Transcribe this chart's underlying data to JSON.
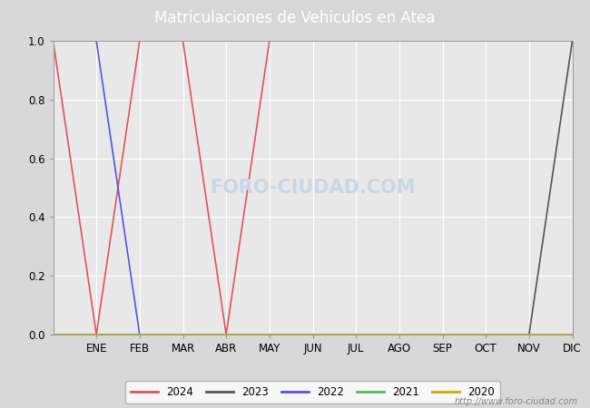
{
  "title": "Matriculaciones de Vehiculos en Atea",
  "title_bg_color": "#5b8dd9",
  "title_color": "#ffffff",
  "title_fontsize": 12,
  "background_color": "#d8d8d8",
  "plot_bg_color": "#e8e8e8",
  "ylim": [
    0.0,
    1.0
  ],
  "yticks": [
    0.0,
    0.2,
    0.4,
    0.6,
    0.8,
    1.0
  ],
  "months": [
    "ENE",
    "FEB",
    "MAR",
    "ABR",
    "MAY",
    "JUN",
    "JUL",
    "AGO",
    "SEP",
    "OCT",
    "NOV",
    "DIC"
  ],
  "series": {
    "2024": {
      "color": "#e05555",
      "x": [
        0,
        1,
        2,
        3,
        4,
        5
      ],
      "y": [
        1.0,
        0.0,
        1.0,
        1.0,
        0.0,
        1.0
      ]
    },
    "2023": {
      "color": "#555555",
      "x": [
        0,
        11,
        12
      ],
      "y": [
        0.0,
        0.0,
        1.0
      ]
    },
    "2022": {
      "color": "#5555dd",
      "x": [
        0,
        1,
        2
      ],
      "y": [
        1.0,
        1.0,
        0.0
      ]
    },
    "2021": {
      "color": "#55bb55",
      "x": [
        0,
        12
      ],
      "y": [
        0.0,
        0.0
      ]
    },
    "2020": {
      "color": "#ccaa00",
      "x": [
        0,
        12
      ],
      "y": [
        0.0,
        0.0
      ]
    }
  },
  "legend_order": [
    "2024",
    "2023",
    "2022",
    "2021",
    "2020"
  ],
  "watermark_text": "FORO-CIUDAD.COM",
  "watermark_url": "http://www.foro-ciudad.com",
  "watermark_color": "#c8d8e8",
  "grid_color": "#ffffff",
  "linewidth": 1.2
}
